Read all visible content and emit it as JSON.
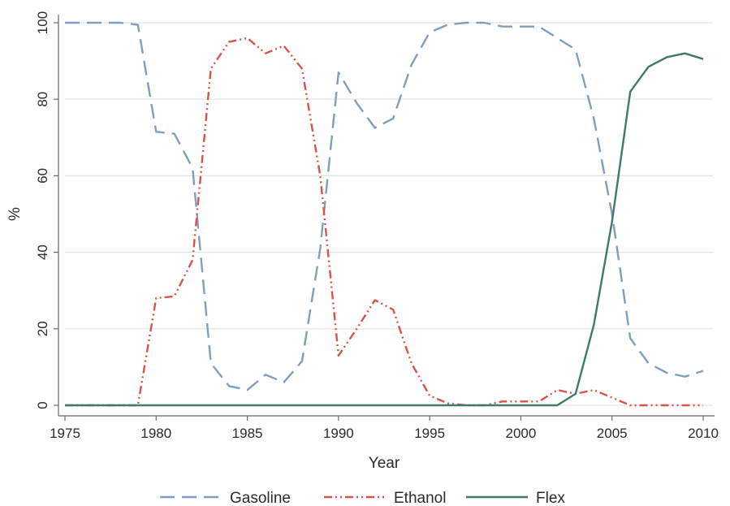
{
  "chart_data": {
    "type": "line",
    "title": "",
    "xlabel": "Year",
    "ylabel": "%",
    "xlim": [
      1975,
      2010
    ],
    "ylim": [
      0,
      100
    ],
    "xticks": [
      1975,
      1980,
      1985,
      1990,
      1995,
      2000,
      2005,
      2010
    ],
    "yticks": [
      0,
      20,
      40,
      60,
      80,
      100
    ],
    "grid": true,
    "legend": "bottom",
    "x": [
      1975,
      1976,
      1977,
      1978,
      1979,
      1980,
      1981,
      1982,
      1983,
      1984,
      1985,
      1986,
      1987,
      1988,
      1989,
      1990,
      1991,
      1992,
      1993,
      1994,
      1995,
      1996,
      1997,
      1998,
      1999,
      2000,
      2001,
      2002,
      2003,
      2004,
      2005,
      2006,
      2007,
      2008,
      2009,
      2010
    ],
    "series": [
      {
        "name": "Gasoline",
        "color": "#7f9fbf",
        "dash": "long-dash",
        "values": [
          100,
          100,
          100,
          100,
          99.5,
          71.5,
          71,
          62,
          11,
          5,
          4,
          8,
          6,
          11.5,
          41,
          87,
          79,
          72.5,
          75,
          89,
          97.5,
          99.5,
          100,
          100,
          99,
          99,
          99,
          96,
          93,
          75,
          50,
          17.5,
          11,
          8.5,
          7.5,
          9
        ]
      },
      {
        "name": "Ethanol",
        "color": "#d9534a",
        "dash": "dash-dot-dot",
        "values": [
          0,
          0,
          0,
          0,
          0,
          28,
          28.5,
          38,
          88,
          95,
          96,
          92,
          94,
          88,
          60,
          13,
          20,
          27.5,
          25,
          11,
          2.5,
          0.5,
          0,
          0,
          1,
          1,
          1,
          4,
          3,
          4,
          2,
          0,
          0,
          0,
          0,
          0
        ]
      },
      {
        "name": "Flex",
        "color": "#3d7a6a",
        "dash": "solid",
        "values": [
          0,
          0,
          0,
          0,
          0,
          0,
          0,
          0,
          0,
          0,
          0,
          0,
          0,
          0,
          0,
          0,
          0,
          0,
          0,
          0,
          0,
          0,
          0,
          0,
          0,
          0,
          0,
          0,
          3,
          21,
          48,
          82,
          88.5,
          91,
          92,
          90.5
        ]
      }
    ]
  }
}
